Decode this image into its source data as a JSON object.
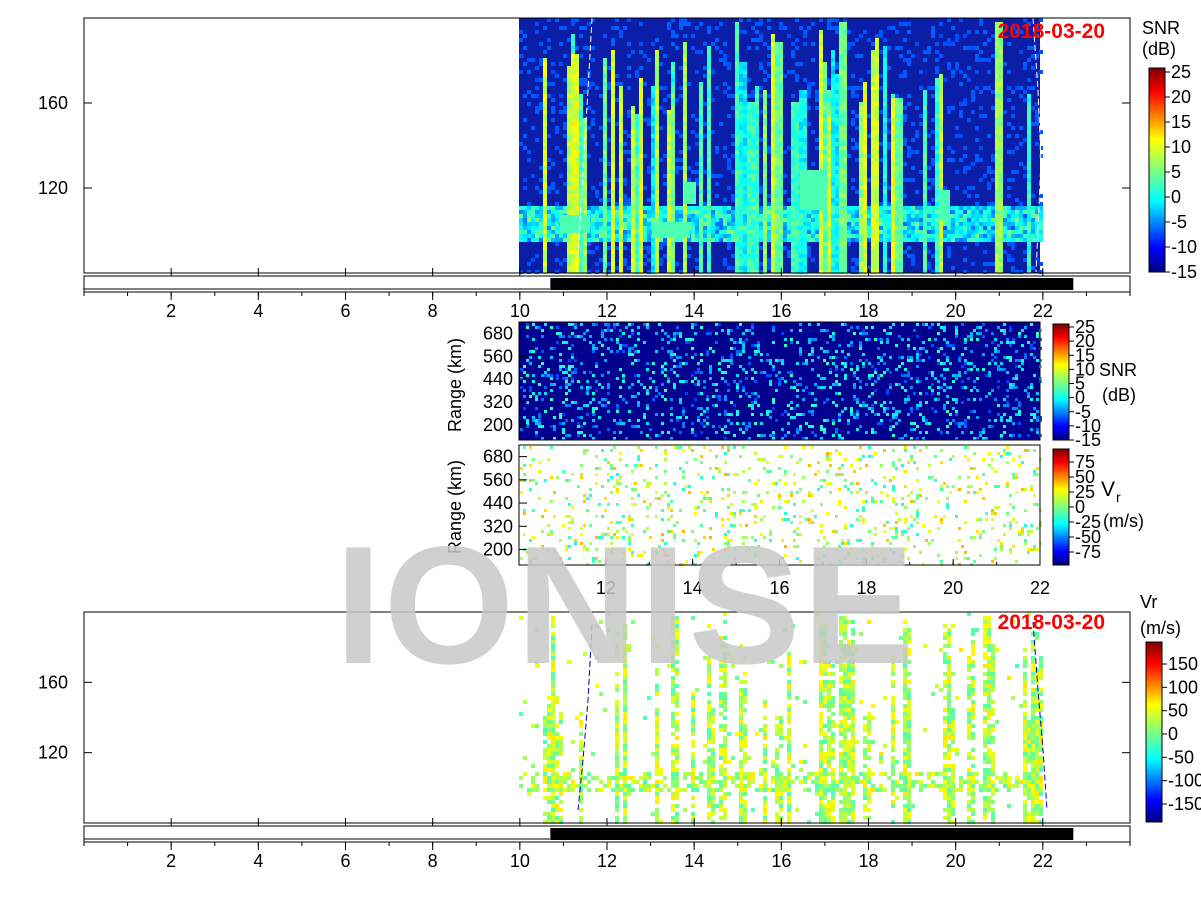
{
  "watermark": "IONISE",
  "colormap": [
    "#00007f",
    "#0000ff",
    "#007fff",
    "#00ffff",
    "#7fff7f",
    "#ffff00",
    "#ff7f00",
    "#ff0000",
    "#7f0000"
  ],
  "chart_data": [
    {
      "id": "top-snr",
      "type": "heatmap",
      "date_label": "2018-03-20",
      "date_color": "#ff0000",
      "colorbar_title": [
        "SNR",
        "(dB)"
      ],
      "colorbar_ticks": [
        "25",
        "20",
        "15",
        "10",
        "5",
        "0",
        "-5",
        "-10",
        "-15"
      ],
      "clim": [
        -15,
        25
      ],
      "xlim": [
        0,
        24
      ],
      "xticks": [
        "2",
        "4",
        "6",
        "8",
        "10",
        "12",
        "14",
        "16",
        "18",
        "20",
        "22"
      ],
      "ylim": [
        80,
        200
      ],
      "yticks": [
        "160",
        "120"
      ],
      "data_time_range": [
        10,
        22
      ],
      "night_bar": [
        10.7,
        22.7
      ]
    },
    {
      "id": "mid-snr",
      "type": "heatmap",
      "ylabel": "Range (km)",
      "yticks": [
        "680",
        "560",
        "440",
        "320",
        "200"
      ],
      "ylim": [
        120,
        740
      ],
      "xlim": [
        10,
        22
      ],
      "colorbar_title": [
        "SNR",
        "(dB)"
      ],
      "colorbar_ticks": [
        "25",
        "20",
        "15",
        "10",
        "5",
        "0",
        "-5",
        "-10",
        "-15"
      ],
      "clim": [
        -15,
        25
      ]
    },
    {
      "id": "mid-vr",
      "type": "heatmap",
      "ylabel": "Range (km)",
      "yticks": [
        "680",
        "560",
        "440",
        "320",
        "200"
      ],
      "ylim": [
        120,
        740
      ],
      "xlim": [
        10,
        22
      ],
      "xticks": [
        "12",
        "14",
        "16",
        "18",
        "20",
        "22"
      ],
      "colorbar_title": [
        "V",
        "r",
        "(m/s)"
      ],
      "colorbar_ticks": [
        "75",
        "50",
        "25",
        "0",
        "-25",
        "-50",
        "-75"
      ],
      "clim": [
        -75,
        75
      ]
    },
    {
      "id": "bottom-vr",
      "type": "heatmap",
      "date_label": "2018-03-20",
      "date_color": "#ff0000",
      "colorbar_title": [
        "Vr",
        "(m/s)"
      ],
      "colorbar_ticks": [
        "150",
        "100",
        "50",
        "0",
        "-50",
        "-100",
        "-150"
      ],
      "clim": [
        -180,
        180
      ],
      "xlim": [
        0,
        24
      ],
      "xticks": [
        "2",
        "4",
        "6",
        "8",
        "10",
        "12",
        "14",
        "16",
        "18",
        "20",
        "22"
      ],
      "ylim": [
        80,
        200
      ],
      "yticks": [
        "160",
        "120"
      ],
      "data_time_range": [
        10,
        22
      ],
      "night_bar": [
        10.7,
        22.7
      ]
    }
  ]
}
